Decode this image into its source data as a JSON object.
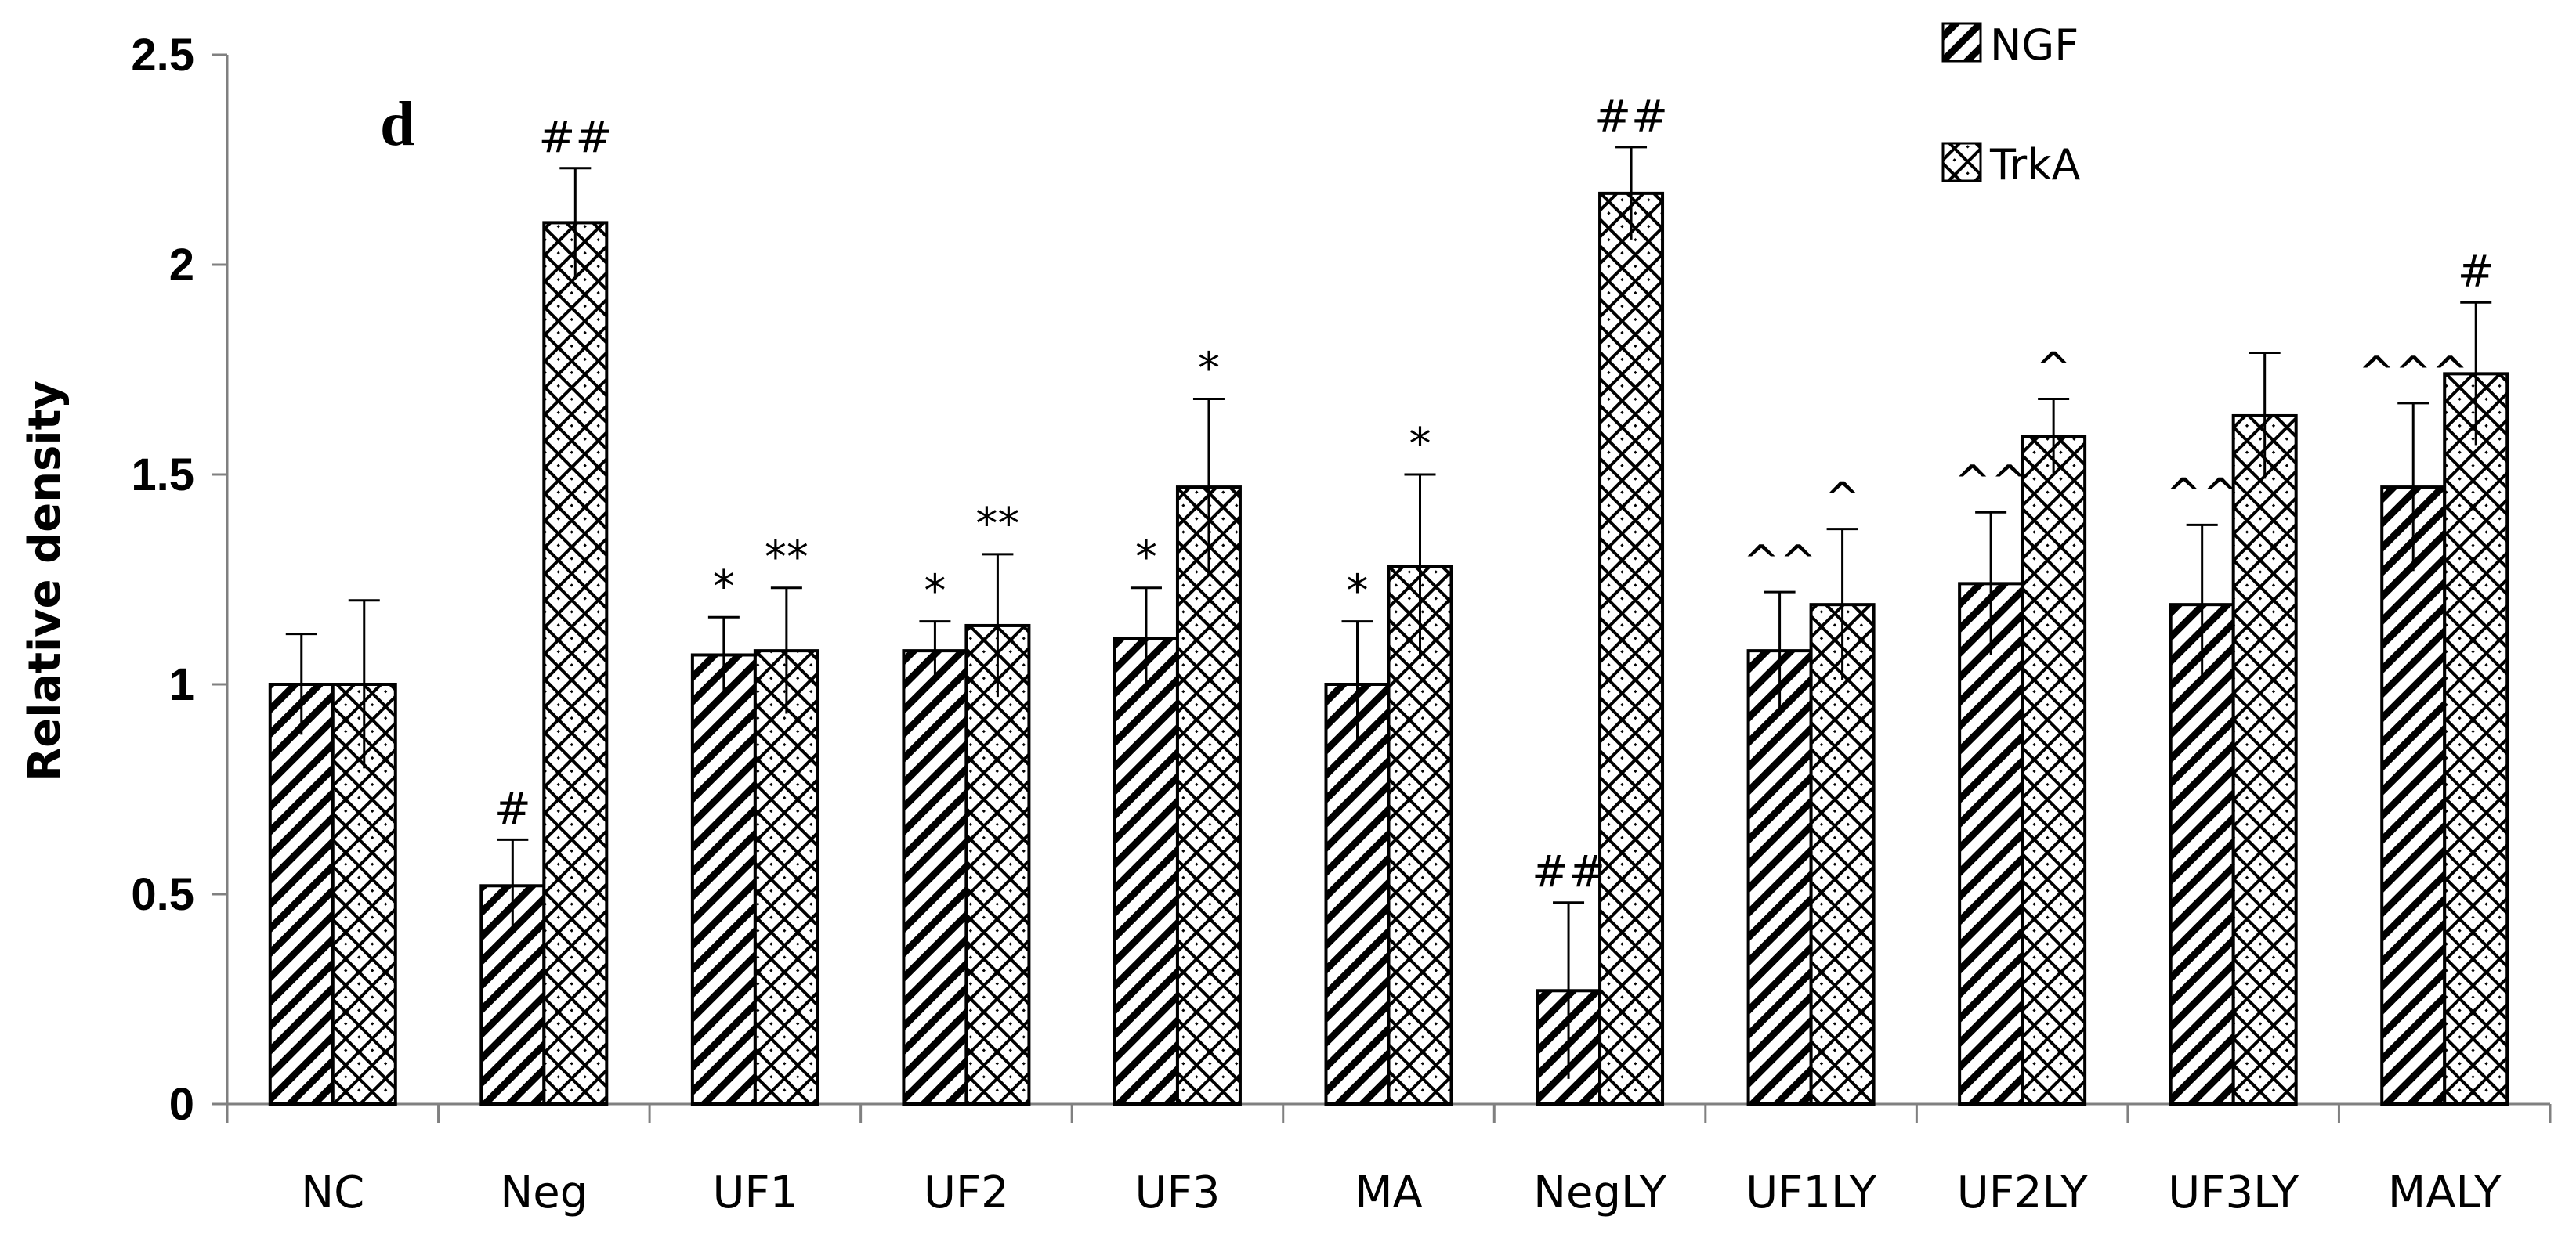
{
  "panel_letter": "d",
  "chart_data": {
    "type": "bar",
    "title": "",
    "xlabel": "",
    "ylabel": "Relative density",
    "ylim": [
      0,
      2.5
    ],
    "yticks": [
      "0",
      "0.5",
      "1",
      "1.5",
      "2",
      "2.5"
    ],
    "grid": false,
    "legend_position": "top-right",
    "categories": [
      "NC",
      "Neg",
      "UF1",
      "UF2",
      "UF3",
      "MA",
      "NegLY",
      "UF1LY",
      "UF2LY",
      "UF3LY",
      "MALY"
    ],
    "series": [
      {
        "name": "NGF",
        "pattern": "diagonal-stripes",
        "values": [
          1.0,
          0.52,
          1.07,
          1.08,
          1.11,
          1.0,
          0.27,
          1.08,
          1.24,
          1.19,
          1.47
        ],
        "errors": [
          0.12,
          0.11,
          0.09,
          0.07,
          0.12,
          0.15,
          0.21,
          0.14,
          0.17,
          0.19,
          0.2
        ],
        "annotations": [
          "",
          "#",
          "*",
          "*",
          "*",
          "*",
          "##",
          "^^",
          "^^",
          "^^",
          "^^^"
        ]
      },
      {
        "name": "TrkA",
        "pattern": "crosshatch",
        "values": [
          1.0,
          2.1,
          1.08,
          1.14,
          1.47,
          1.28,
          2.17,
          1.19,
          1.59,
          1.64,
          1.74
        ],
        "errors": [
          0.2,
          0.13,
          0.15,
          0.17,
          0.21,
          0.22,
          0.11,
          0.18,
          0.09,
          0.15,
          0.17
        ],
        "annotations": [
          "",
          "##",
          "**",
          "**",
          "*",
          "*",
          "##",
          "^",
          "^",
          "",
          "#"
        ]
      }
    ]
  },
  "colors": {
    "bar_fill": "#ffffff",
    "stroke": "#000000",
    "axis": "#808080"
  }
}
